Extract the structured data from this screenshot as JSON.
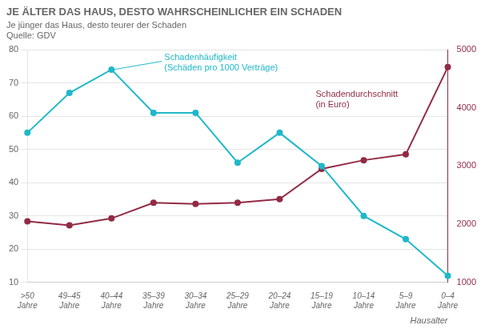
{
  "chart_data": {
    "type": "line",
    "title": "JE ÄLTER DAS HAUS, DESTO WAHRSCHEINLICHER EIN SCHADEN",
    "subtitle": "Je jünger das Haus, desto teurer der Schaden",
    "source": "Quelle: GDV",
    "xlabel": "Hausalter",
    "categories": [
      ">50\nJahre",
      "49–45\nJahre",
      "40–44\nJahre",
      "35–39\nJahre",
      "30–34\nJahre",
      "25–29\nJahre",
      "20–24\nJahre",
      "15–19\nJahre",
      "10–14\nJahre",
      "5–9\nJahre",
      "0–4\nJahre"
    ],
    "series": [
      {
        "name": "Schadenhäufigkeit\n(Schäden pro 1000 Verträge)",
        "color": "#1fb8c9",
        "marker": "circle",
        "values": [
          55,
          67,
          74,
          61,
          61,
          46,
          55,
          45,
          30,
          23,
          12
        ]
      },
      {
        "name": "Schadendurchschnitt\n(in Euro)",
        "color": "#922b45",
        "marker": "circle",
        "axis": "y2",
        "values": [
          2050,
          1980,
          2100,
          2370,
          2350,
          2370,
          2430,
          2950,
          3100,
          3200,
          4700
        ]
      }
    ],
    "ylim": [
      10,
      80
    ],
    "yticks": [
      10,
      20,
      30,
      40,
      50,
      60,
      70,
      80
    ],
    "y2lim": [
      1000,
      5000
    ],
    "y2ticks": [
      1000,
      2000,
      3000,
      4000,
      5000
    ],
    "grid": true
  }
}
